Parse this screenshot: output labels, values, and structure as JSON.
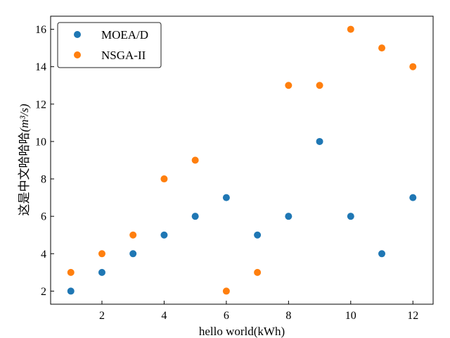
{
  "chart_data": {
    "type": "scatter",
    "xlabel": "hello world(kWh)",
    "ylabel": "这是中文哈哈哈",
    "ylabel_unit": "(m³/s)",
    "xlim": [
      0.35,
      12.65
    ],
    "ylim": [
      1.3,
      16.7
    ],
    "xticks": [
      2,
      4,
      6,
      8,
      10,
      12
    ],
    "yticks": [
      2,
      4,
      6,
      8,
      10,
      12,
      14,
      16
    ],
    "legend_position": "top-left",
    "grid": false,
    "x": [
      1,
      2,
      3,
      4,
      5,
      6,
      7,
      8,
      9,
      10,
      11,
      12
    ],
    "series": [
      {
        "name": "MOEA/D",
        "color": "#1f77b4",
        "values": [
          2,
          3,
          4,
          5,
          6,
          7,
          5,
          6,
          10,
          6,
          4,
          7
        ]
      },
      {
        "name": "NSGA-II",
        "color": "#ff7f0e",
        "values": [
          3,
          4,
          5,
          8,
          9,
          2,
          3,
          13,
          13,
          16,
          15,
          14
        ]
      }
    ]
  }
}
